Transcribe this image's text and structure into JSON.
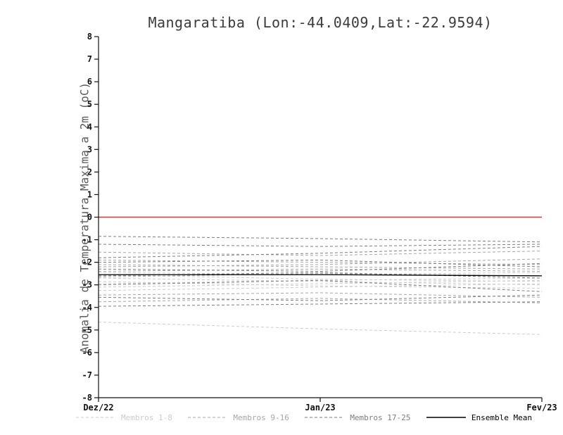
{
  "title": "Mangaratiba (Lon:-44.0409,Lat:-22.9594)",
  "chart_data": {
    "type": "line",
    "title": "Mangaratiba (Lon:-44.0409,Lat:-22.9594)",
    "ylabel": "Anomalia de Temperatura Maxima a 2m (oC)",
    "xlabel": "",
    "ylim": [
      -8,
      8
    ],
    "yticks": [
      -8,
      -7,
      -6,
      -5,
      -4,
      -3,
      -2,
      -1,
      0,
      1,
      2,
      3,
      4,
      5,
      6,
      7,
      8
    ],
    "x_ticks": [
      "Dez/22",
      "Jan/23",
      "Fev/23"
    ],
    "x_values": [
      0,
      0.5,
      1
    ],
    "grid": "off",
    "legend_position": "bottom",
    "zero_line": {
      "value": 0,
      "color": "#e03333"
    },
    "axis_color": "#111111",
    "groups": [
      {
        "name": "Membros 1-8",
        "color": "#cccccc",
        "style": "dashed",
        "members": [
          [
            -2.55,
            -2.75,
            -2.85
          ],
          [
            -2.95,
            -2.8,
            -2.7
          ],
          [
            -3.25,
            -3.1,
            -2.95
          ],
          [
            -4.65,
            -4.95,
            -5.2
          ],
          [
            -2.85,
            -3.05,
            -3.15
          ],
          [
            -2.45,
            -2.55,
            -2.45
          ],
          [
            -3.1,
            -2.95,
            -2.8
          ],
          [
            -2.7,
            -2.85,
            -3.0
          ]
        ]
      },
      {
        "name": "Membros 9-16",
        "color": "#a6a6a6",
        "style": "dashed",
        "members": [
          [
            -1.55,
            -1.7,
            -1.5
          ],
          [
            -1.9,
            -2.0,
            -2.1
          ],
          [
            -2.2,
            -2.1,
            -1.85
          ],
          [
            -2.4,
            -2.3,
            -2.4
          ],
          [
            -2.65,
            -2.5,
            -2.6
          ],
          [
            -3.45,
            -3.35,
            -3.55
          ],
          [
            -3.75,
            -3.6,
            -3.8
          ],
          [
            -2.1,
            -2.2,
            -2.3
          ]
        ]
      },
      {
        "name": "Membros 17-25",
        "color": "#7d7d7d",
        "style": "dashed",
        "members": [
          [
            -0.85,
            -0.95,
            -1.1
          ],
          [
            -1.2,
            -1.3,
            -1.2
          ],
          [
            -1.8,
            -1.6,
            -1.3
          ],
          [
            -2.0,
            -1.9,
            -2.2
          ],
          [
            -2.3,
            -2.4,
            -2.05
          ],
          [
            -2.6,
            -2.45,
            -2.7
          ],
          [
            -3.0,
            -2.8,
            -3.3
          ],
          [
            -3.55,
            -3.7,
            -3.45
          ],
          [
            -3.95,
            -3.85,
            -3.75
          ]
        ]
      }
    ],
    "mean": {
      "name": "Ensemble Mean",
      "color": "#000000",
      "style": "solid",
      "values": [
        -2.55,
        -2.55,
        -2.6
      ]
    }
  }
}
